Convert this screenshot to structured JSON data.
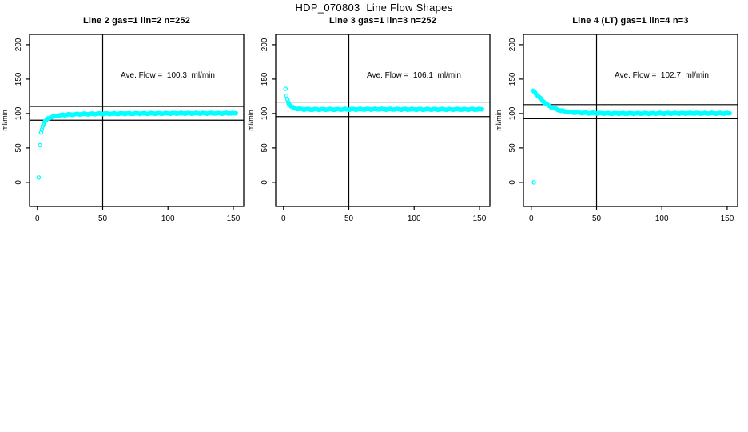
{
  "page_title": "HDP_070803  Line Flow Shapes",
  "chart_data": {
    "type": "scatter",
    "title": "HDP_070803  Line Flow Shapes",
    "marker_color": "#00FFFF",
    "axis_color": "#000000",
    "ylabel": "ml/min",
    "x_ticks": [
      0,
      50,
      100,
      150
    ],
    "y_ticks": [
      0,
      50,
      100,
      150,
      200
    ],
    "xlim": [
      -6,
      158
    ],
    "ylim": [
      -35,
      215
    ],
    "vline_x": 50,
    "grid": false,
    "legend": "none",
    "panels": [
      {
        "title": "Line 2 gas=1 lin=2 n=252",
        "annotation": "Ave. Flow =  100.3  ml/min",
        "ave_flow_ml_min": 100.3,
        "n": 252,
        "hlines": [
          90.3,
          110.3
        ],
        "outliers": [
          [
            1,
            7
          ],
          [
            2,
            54
          ]
        ],
        "curve": [
          [
            2.8,
            72
          ],
          [
            4,
            82
          ],
          [
            5,
            86
          ],
          [
            6,
            89
          ],
          [
            8,
            92.5
          ],
          [
            10,
            94.5
          ],
          [
            13,
            96
          ],
          [
            17,
            97.3
          ],
          [
            22,
            98.2
          ],
          [
            30,
            99
          ],
          [
            45,
            99.6
          ],
          [
            70,
            100
          ],
          [
            110,
            100.3
          ],
          [
            152,
            100.4
          ]
        ]
      },
      {
        "title": "Line 3 gas=1 lin=3 n=252",
        "annotation": "Ave. Flow =  106.1  ml/min",
        "ave_flow_ml_min": 106.1,
        "n": 252,
        "hlines": [
          95.5,
          116.7
        ],
        "outliers": [
          [
            1.5,
            136
          ],
          [
            2.2,
            126
          ]
        ],
        "curve": [
          [
            3,
            120
          ],
          [
            4,
            115
          ],
          [
            5,
            112
          ],
          [
            6,
            110
          ],
          [
            8,
            108
          ],
          [
            10,
            107
          ],
          [
            14,
            106.3
          ],
          [
            20,
            106
          ],
          [
            40,
            106
          ],
          [
            70,
            106.3
          ],
          [
            110,
            106
          ],
          [
            152,
            106.1
          ]
        ]
      },
      {
        "title": "Line 4 (LT) gas=1 lin=4 n=3",
        "annotation": "Ave. Flow =  102.7  ml/min",
        "ave_flow_ml_min": 102.7,
        "n": 3,
        "hlines": [
          92.4,
          112.9
        ],
        "outliers": [
          [
            2,
            0
          ]
        ],
        "curve": [
          [
            1.5,
            133
          ],
          [
            3,
            130
          ],
          [
            5,
            126
          ],
          [
            7,
            122
          ],
          [
            9,
            118
          ],
          [
            12,
            113
          ],
          [
            15,
            109.5
          ],
          [
            18,
            107
          ],
          [
            22,
            104.5
          ],
          [
            26,
            103
          ],
          [
            30,
            102
          ],
          [
            36,
            101.2
          ],
          [
            45,
            100.6
          ],
          [
            60,
            100.2
          ],
          [
            90,
            100.2
          ],
          [
            120,
            100.4
          ],
          [
            152,
            100.3
          ]
        ]
      }
    ]
  }
}
